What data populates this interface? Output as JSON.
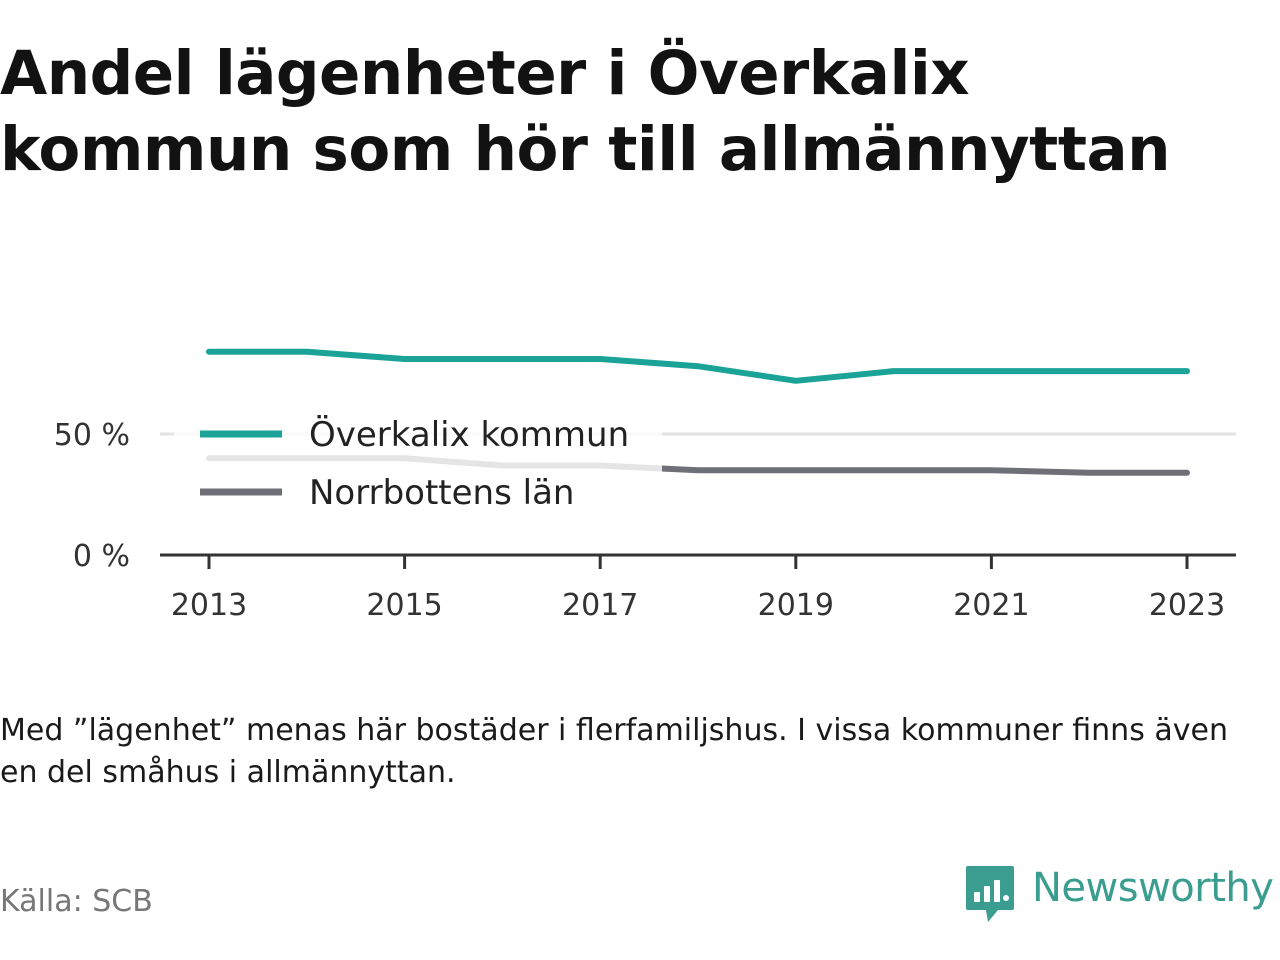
{
  "title": "Andel lägenheter i Överkalix kommun som hör till allmännyttan",
  "note": "Med ”lägenhet” menas här bostäder i flerfamiljshus. I vissa kommuner finns även en del småhus i allmännyttan.",
  "source": "Källa: SCB",
  "brand": {
    "name": "Newsworthy",
    "icon": "newsworthy-logo-icon"
  },
  "chart_data": {
    "type": "line",
    "title": "Andel lägenheter i Överkalix kommun som hör till allmännyttan",
    "xlabel": "",
    "ylabel": "",
    "x": [
      2013,
      2014,
      2015,
      2016,
      2017,
      2018,
      2019,
      2020,
      2021,
      2022,
      2023
    ],
    "xlim": [
      2012.5,
      2023.5
    ],
    "ylim": [
      0,
      100
    ],
    "x_ticks": [
      2013,
      2015,
      2017,
      2019,
      2021,
      2023
    ],
    "x_tick_labels": [
      "2013",
      "2015",
      "2017",
      "2019",
      "2021",
      "2023"
    ],
    "y_ticks": [
      0,
      50
    ],
    "y_tick_labels": [
      "0 %",
      "50 %"
    ],
    "grid": "horizontal",
    "legend": "inside, left",
    "series": [
      {
        "name": "Överkalix kommun",
        "color": "#1aa396",
        "values": [
          84,
          84,
          81,
          81,
          81,
          78,
          72,
          76,
          76,
          76,
          76
        ]
      },
      {
        "name": "Norrbottens län",
        "color": "#6f6f77",
        "values": [
          40,
          40,
          40,
          37,
          37,
          35,
          35,
          35,
          35,
          34,
          34
        ]
      }
    ]
  }
}
